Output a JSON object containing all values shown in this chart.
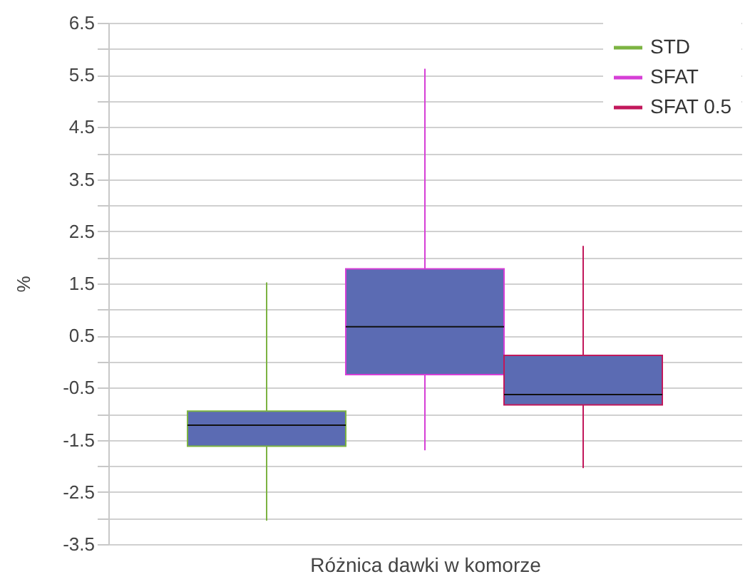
{
  "chart_data": {
    "type": "box",
    "xlabel": "Różnica dawki w komorze",
    "ylabel": "%",
    "categories": [
      null
    ],
    "color": "#5b6bb3",
    "series": [
      {
        "name": "STD",
        "color": "#7cb342",
        "boxes": [
          {
            "low": -3.05,
            "q1": -1.62,
            "median": -1.22,
            "q3": -0.95,
            "high": 1.52
          }
        ]
      },
      {
        "name": "SFAT",
        "color": "#d63fd6",
        "boxes": [
          {
            "low": -1.7,
            "q1": -0.25,
            "median": 0.67,
            "q3": 1.78,
            "high": 5.62
          }
        ]
      },
      {
        "name": "SFAT 0.5",
        "color": "#c2185b",
        "boxes": [
          {
            "low": -2.04,
            "q1": -0.83,
            "median": -0.63,
            "q3": 0.12,
            "high": 2.22
          }
        ]
      }
    ],
    "ylim": [
      -3.5,
      6.5
    ],
    "yticks": [
      -3.5,
      {
        "value": -3,
        "label": null
      },
      -2.5,
      {
        "value": -2,
        "label": null
      },
      -1.5,
      {
        "value": -1,
        "label": null
      },
      -0.5,
      {
        "value": 0,
        "label": null
      },
      0.5,
      {
        "value": 1,
        "label": null
      },
      1.5,
      {
        "value": 2,
        "label": null
      },
      2.5,
      {
        "value": 3,
        "label": null
      },
      3.5,
      {
        "value": 4,
        "label": null
      },
      4.5,
      {
        "value": 5,
        "label": null
      },
      5.5,
      {
        "value": 6,
        "label": null
      },
      6.5
    ],
    "grid": "y",
    "legend": "top right"
  }
}
